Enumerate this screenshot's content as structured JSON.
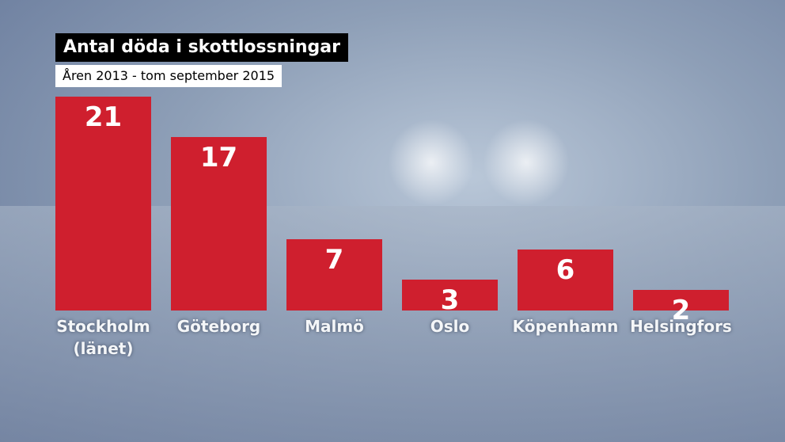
{
  "chart_data": {
    "type": "bar",
    "title": "Antal döda i skottlossningar",
    "subtitle": "Åren 2013 - tom september 2015",
    "categories": [
      "Stockholm\n(länet)",
      "Göteborg",
      "Malmö",
      "Oslo",
      "Köpenhamn",
      "Helsingfors"
    ],
    "values": [
      21,
      17,
      7,
      3,
      6,
      2
    ],
    "color": "#cf1f2e"
  }
}
